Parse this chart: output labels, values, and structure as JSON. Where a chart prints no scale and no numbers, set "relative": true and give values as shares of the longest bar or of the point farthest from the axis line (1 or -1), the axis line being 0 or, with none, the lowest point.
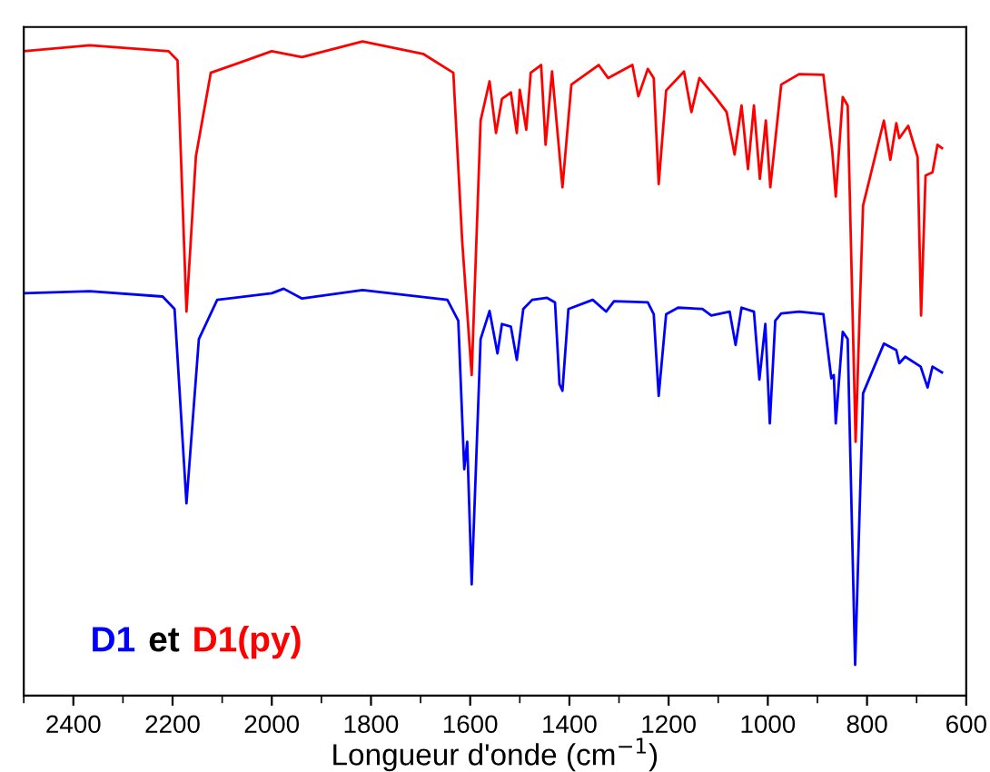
{
  "chart_data": {
    "type": "line",
    "relative": true,
    "xlabel": "Longueur d'onde (cm$^{−1}$)",
    "annotations": [
      "et"
    ],
    "legend": "bottom left",
    "tick_labels": "x",
    "grid": false,
    "marker": "none",
    "line_style": "solid",
    "xlim": [
      2500,
      600
    ],
    "xticks": [
      2400,
      2200,
      2000,
      1800,
      1600,
      1400,
      1200,
      1000,
      800,
      600
    ],
    "series": [
      {
        "name": "D1",
        "color": "#0000ff",
        "x": [
          2500,
          2367,
          2220,
          2196,
          2172,
          2147,
          2110,
          2000,
          1976,
          1939,
          1817,
          1646,
          1624,
          1612,
          1606,
          1597,
          1579,
          1561,
          1545,
          1536,
          1518,
          1506,
          1493,
          1475,
          1445,
          1429,
          1420,
          1414,
          1402,
          1353,
          1326,
          1310,
          1242,
          1230,
          1220,
          1205,
          1181,
          1132,
          1114,
          1077,
          1065,
          1053,
          1028,
          1017,
          1005,
          996,
          985,
          973,
          937,
          888,
          872,
          867,
          863,
          849,
          839,
          824,
          808,
          766,
          741,
          735,
          723,
          692,
          678,
          668,
          649
        ],
        "values": [
          0.615,
          0.618,
          0.61,
          0.591,
          0.294,
          0.545,
          0.605,
          0.615,
          0.622,
          0.607,
          0.62,
          0.605,
          0.573,
          0.346,
          0.388,
          0.17,
          0.545,
          0.588,
          0.523,
          0.568,
          0.564,
          0.513,
          0.591,
          0.605,
          0.608,
          0.601,
          0.476,
          0.466,
          0.591,
          0.605,
          0.587,
          0.603,
          0.601,
          0.583,
          0.458,
          0.583,
          0.593,
          0.591,
          0.581,
          0.587,
          0.536,
          0.593,
          0.587,
          0.483,
          0.568,
          0.416,
          0.573,
          0.584,
          0.587,
          0.583,
          0.485,
          0.49,
          0.416,
          0.556,
          0.545,
          0.047,
          0.462,
          0.538,
          0.528,
          0.508,
          0.518,
          0.503,
          0.471,
          0.503,
          0.494
        ]
      },
      {
        "name": "D1(py)",
        "color": "#ff0000",
        "x": [
          2500,
          2367,
          2208,
          2190,
          2172,
          2153,
          2123,
          2000,
          1939,
          1817,
          1695,
          1634,
          1616,
          1597,
          1579,
          1561,
          1548,
          1536,
          1518,
          1506,
          1500,
          1487,
          1478,
          1457,
          1448,
          1435,
          1414,
          1396,
          1341,
          1322,
          1273,
          1261,
          1242,
          1230,
          1220,
          1205,
          1169,
          1154,
          1138,
          1107,
          1083,
          1067,
          1053,
          1040,
          1028,
          1016,
          1004,
          995,
          973,
          937,
          888,
          870,
          863,
          849,
          839,
          823,
          808,
          766,
          753,
          741,
          735,
          717,
          698,
          691,
          682,
          668,
          658,
          649
        ],
        "values": [
          0.985,
          0.994,
          0.985,
          0.971,
          0.587,
          0.824,
          0.952,
          0.985,
          0.976,
          1.0,
          0.981,
          0.952,
          0.693,
          0.49,
          0.879,
          0.939,
          0.86,
          0.912,
          0.922,
          0.86,
          0.926,
          0.865,
          0.952,
          0.964,
          0.842,
          0.954,
          0.777,
          0.934,
          0.964,
          0.944,
          0.964,
          0.916,
          0.958,
          0.944,
          0.782,
          0.925,
          0.954,
          0.892,
          0.944,
          0.916,
          0.892,
          0.827,
          0.902,
          0.805,
          0.902,
          0.79,
          0.879,
          0.777,
          0.934,
          0.95,
          0.949,
          0.832,
          0.763,
          0.915,
          0.902,
          0.388,
          0.749,
          0.879,
          0.819,
          0.875,
          0.852,
          0.871,
          0.823,
          0.581,
          0.795,
          0.8,
          0.842,
          0.837
        ]
      }
    ]
  }
}
